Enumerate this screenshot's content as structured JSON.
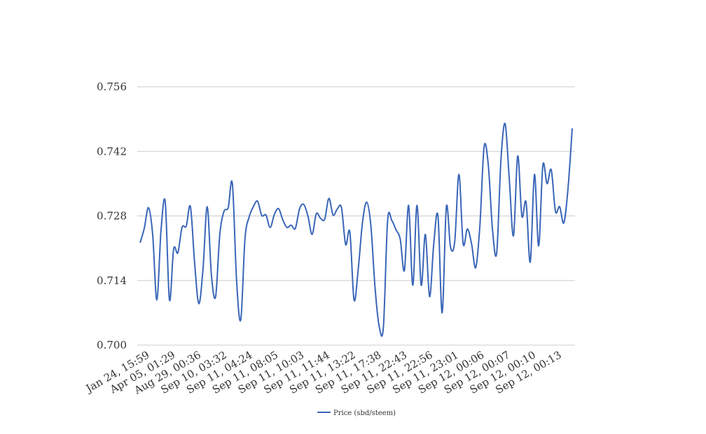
{
  "chart_data": {
    "type": "line",
    "title": "",
    "xlabel": "",
    "ylabel": "",
    "ylim": [
      0.7,
      0.756
    ],
    "y_ticks": [
      "0.700",
      "0.714",
      "0.728",
      "0.742",
      "0.756"
    ],
    "grid": true,
    "legend_position": "bottom",
    "series_color": "#3a66b8",
    "x_tick_labels": [
      "Jan 24, 15:59",
      "Apr 05, 01:29",
      "Aug 29, 00:36",
      "Sep 10, 03:32",
      "Sep 11, 04:24",
      "Sep 11, 08:05",
      "Sep 11, 10:03",
      "Sep 11, 11:44",
      "Sep 11, 13:22",
      "Sep 11, 17:38",
      "Sep 11, 22:43",
      "Sep 11, 22:56",
      "Sep 11, 23:01",
      "Sep 12, 00:06",
      "Sep 12, 00:07",
      "Sep 12, 00:10",
      "Sep 12, 00:13"
    ],
    "series": [
      {
        "name": "Price (sbd/steem)",
        "values": [
          0.7222,
          0.7253,
          0.7298,
          0.724,
          0.7098,
          0.725,
          0.731,
          0.7098,
          0.7208,
          0.72,
          0.7255,
          0.7258,
          0.73,
          0.7178,
          0.709,
          0.7165,
          0.73,
          0.7152,
          0.7105,
          0.724,
          0.729,
          0.7298,
          0.735,
          0.714,
          0.7055,
          0.723,
          0.7278,
          0.73,
          0.7312,
          0.7281,
          0.7282,
          0.7255,
          0.7283,
          0.7296,
          0.7272,
          0.7255,
          0.726,
          0.7253,
          0.7295,
          0.7305,
          0.728,
          0.724,
          0.7285,
          0.7275,
          0.7273,
          0.7318,
          0.7282,
          0.7295,
          0.7298,
          0.7218,
          0.7245,
          0.7098,
          0.7165,
          0.7265,
          0.731,
          0.726,
          0.7125,
          0.704,
          0.704,
          0.727,
          0.727,
          0.725,
          0.723,
          0.7162,
          0.7303,
          0.713,
          0.7303,
          0.713,
          0.724,
          0.7105,
          0.722,
          0.728,
          0.707,
          0.73,
          0.7212,
          0.7225,
          0.737,
          0.722,
          0.7252,
          0.722,
          0.7168,
          0.726,
          0.743,
          0.739,
          0.725,
          0.72,
          0.74,
          0.748,
          0.736,
          0.7237,
          0.741,
          0.728,
          0.731,
          0.718,
          0.737,
          0.7215,
          0.739,
          0.735,
          0.738,
          0.729,
          0.73,
          0.7265,
          0.734,
          0.747
        ]
      }
    ]
  }
}
